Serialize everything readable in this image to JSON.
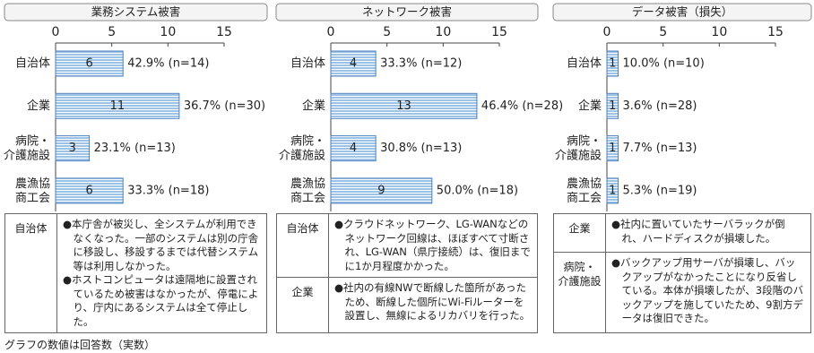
{
  "chart_data": [
    {
      "type": "bar",
      "title": "業務システム被害",
      "categories": [
        "自治体",
        "企業",
        "病院・\n介護施設",
        "農漁協\n商工会"
      ],
      "values": [
        6,
        11,
        3,
        6
      ],
      "annotations": [
        "42.9% (n=14)",
        "36.7% (n=30)",
        "23.1% (n=13)",
        "33.3% (n=18)"
      ],
      "xlim": [
        0,
        15
      ],
      "xticks": [
        0,
        5,
        10,
        15
      ],
      "color": "#9cc3e6"
    },
    {
      "type": "bar",
      "title": "ネットワーク被害",
      "categories": [
        "自治体",
        "企業",
        "病院・\n介護施設",
        "農漁協\n商工会"
      ],
      "values": [
        4,
        13,
        4,
        9
      ],
      "annotations": [
        "33.3% (n=12)",
        "46.4% (n=28)",
        "30.8% (n=13)",
        "50.0% (n=18)"
      ],
      "xlim": [
        0,
        15
      ],
      "xticks": [
        0,
        5,
        10,
        15
      ],
      "color": "#9cc3e6"
    },
    {
      "type": "bar",
      "title": "データ被害（損失）",
      "categories": [
        "自治体",
        "企業",
        "病院・\n介護施設",
        "農漁協\n商工会"
      ],
      "values": [
        1,
        1,
        1,
        1
      ],
      "annotations": [
        "10.0% (n=10)",
        "3.6% (n=28)",
        "7.7% (n=13)",
        "5.3% (n=19)"
      ],
      "xlim": [
        0,
        15
      ],
      "xticks": [
        0,
        5,
        10,
        15
      ],
      "color": "#9cc3e6"
    }
  ],
  "tables": [
    {
      "rows": [
        {
          "label": "自治体",
          "items": [
            "●本庁舎が被災し、全システムが利用できなくなった。一部のシステムは別の庁舎に移設し、移設するまでは代替システム等は利用しなかった。",
            "●ホストコンピュータは遠隔地に設置されているため被害はなかったが、停電により、庁内にあるシステムは全て停止した。"
          ]
        }
      ]
    },
    {
      "rows": [
        {
          "label": "自治体",
          "items": [
            "●クラウドネットワーク、LG-WANなどのネットワーク回線は、ほぼすべて寸断され、LG-WAN（県庁接続）は、復旧までに1か月程度かかった。"
          ]
        },
        {
          "label": "企業",
          "items": [
            "●社内の有線NWで断線した箇所があったため、断線した個所にWi-Fiルーターを設置し、無線によるリカバリを行った。"
          ]
        }
      ]
    },
    {
      "rows": [
        {
          "label": "企業",
          "items": [
            "●社内に置いていたサーバラックが倒れ、ハードディスクが損壊した。"
          ]
        },
        {
          "label": "病院・\n介護施設",
          "items": [
            "●バックアップ用サーバが損壊し、バックアップがなかったことになり反省している。本体が損壊したが、3段階のバックアップを施していたため、9割方データは復旧できた。"
          ]
        }
      ]
    }
  ],
  "footnote": "グラフの数値は回答数（実数）"
}
